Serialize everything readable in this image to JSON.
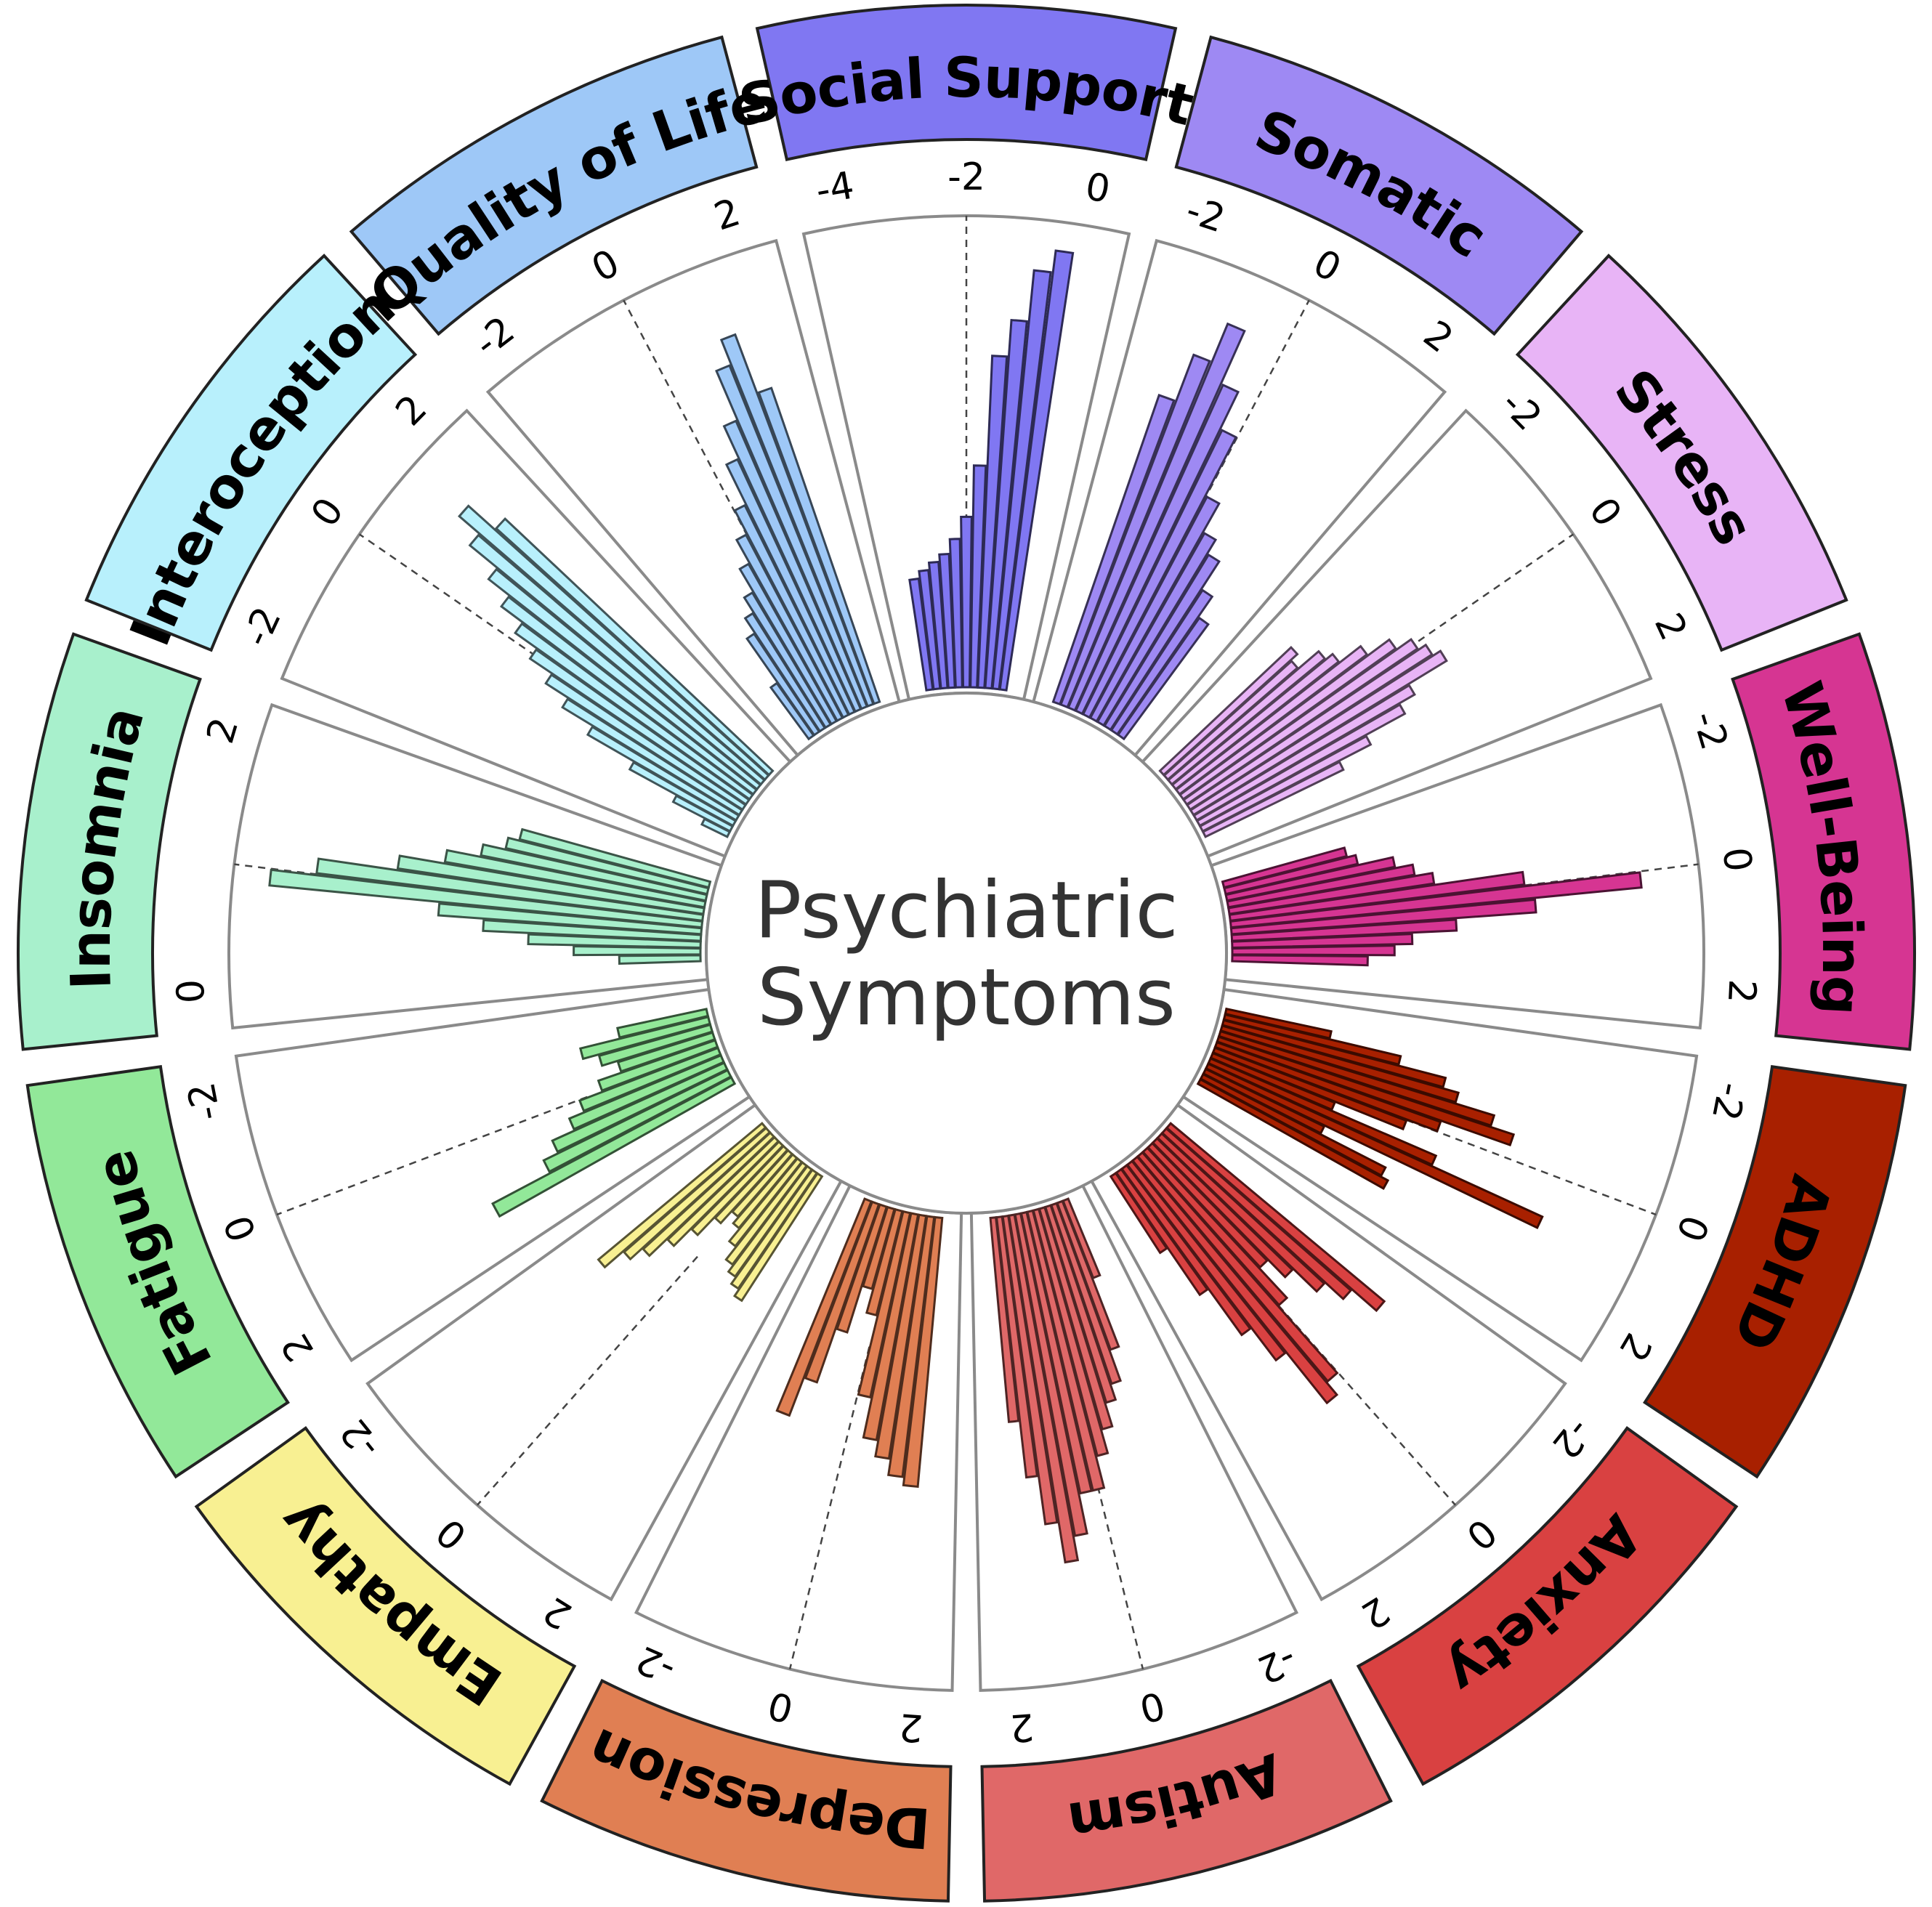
{
  "chart_data": {
    "type": "circular-bar",
    "title": "Psychiatric Symptoms",
    "title_lines": [
      "Psychiatric",
      "Symptoms"
    ],
    "tick_values": [
      -2,
      0,
      2
    ],
    "categories": [
      {
        "name": "Social Support",
        "color": "#8077f2",
        "ticks": [
          -4,
          -2,
          0
        ],
        "range": [
          -5,
          1.2
        ],
        "values": [
          -3.5,
          -3.4,
          -3.3,
          -3.2,
          -3.0,
          -2.7,
          -2.0,
          -0.5,
          0.0,
          0.7,
          1.0
        ]
      },
      {
        "name": "Somatic",
        "color": "#9e89f3",
        "ticks": [
          -2,
          0,
          2
        ],
        "range": [
          -2.3,
          3.2
        ],
        "values": [
          1.6,
          2.2,
          2.7,
          2.0,
          1.5,
          0.7,
          0.3,
          0.1,
          -0.3,
          -0.6
        ]
      },
      {
        "name": "Stress",
        "color": "#e8b4f6",
        "ticks": [
          -2,
          0,
          2
        ],
        "range": [
          -2.3,
          2.8
        ],
        "values": [
          -0.3,
          -0.4,
          -0.1,
          0.0,
          0.3,
          0.6,
          0.8,
          0.9,
          1.0,
          0.5,
          0.3,
          -0.2,
          -0.6
        ]
      },
      {
        "name": "Well-Being",
        "color": "#d63592",
        "ticks": [
          -2,
          0,
          2
        ],
        "range": [
          -2.3,
          2.8
        ],
        "values": [
          -0.9,
          -0.8,
          -0.4,
          -0.2,
          0.0,
          1.0,
          2.3,
          1.1,
          0.2,
          -0.3,
          -0.5,
          -0.8
        ]
      },
      {
        "name": "ADHD",
        "color": "#a82000",
        "ticks": [
          -2,
          0,
          2
        ],
        "range": [
          -2.8,
          2.8
        ],
        "values": [
          -1.5,
          -0.6,
          0.0,
          0.2,
          0.7,
          1.0,
          0.1,
          -0.3,
          -1.2,
          0.2,
          1.7,
          -1.2,
          -0.3,
          -0.2
        ]
      },
      {
        "name": "Anxiety",
        "color": "#d94141",
        "ticks": [
          -2,
          0,
          2
        ],
        "range": [
          -2.8,
          2.8
        ],
        "values": [
          0.6,
          0.2,
          -0.1,
          -0.5,
          -0.8,
          -0.3,
          0.8,
          1.0,
          0.2,
          -0.3,
          -1.0,
          -1.7
        ]
      },
      {
        "name": "Autism",
        "color": "#e06868",
        "ticks": [
          -2,
          0,
          2
        ],
        "range": [
          -2.8,
          2.8
        ],
        "values": [
          -1.8,
          -0.9,
          -0.5,
          -0.3,
          0.0,
          0.3,
          0.7,
          0.7,
          1.2,
          1.5,
          1.0,
          0.4,
          -0.3
        ]
      },
      {
        "name": "Depression",
        "color": "#e07f53",
        "ticks": [
          2,
          0,
          -2
        ],
        "range": [
          -2.8,
          2.8
        ],
        "values": [
          0.5,
          0.4,
          0.2,
          0.0,
          -0.5,
          -1.5,
          -1.8,
          -1.2,
          -0.5,
          0.0
        ]
      },
      {
        "name": "Empathy",
        "color": "#f8f092",
        "ticks": [
          2,
          0,
          -2
        ],
        "range": [
          -2.8,
          2.8
        ],
        "values": [
          -1.0,
          -1.1,
          -1.2,
          -1.3,
          -1.5,
          -1.7,
          -1.8,
          -1.6,
          -1.3,
          -1.0,
          -0.7,
          -0.5,
          -0.2
        ]
      },
      {
        "name": "Fatigue",
        "color": "#92e899",
        "ticks": [
          2,
          0,
          -2
        ],
        "range": [
          -2.8,
          2.8
        ],
        "values": [
          0.5,
          -0.3,
          -0.5,
          -0.8,
          -1.0,
          -1.3,
          -1.6,
          -1.4,
          -1.2,
          -1.7
        ]
      },
      {
        "name": "Insomnia",
        "color": "#a8f0cc",
        "ticks": [
          0,
          2
        ],
        "range": [
          -1.4,
          2.6
        ],
        "values": [
          -0.7,
          -0.3,
          0.1,
          0.5,
          0.9,
          2.4,
          2.0,
          1.3,
          0.9,
          0.6,
          0.4,
          0.3
        ]
      },
      {
        "name": "Interoception",
        "color": "#b8f0fc",
        "ticks": [
          -2,
          0,
          2
        ],
        "range": [
          -2.3,
          2.8
        ],
        "values": [
          -2.0,
          -1.6,
          -1.0,
          -0.4,
          0.0,
          0.3,
          0.6,
          0.9,
          1.2,
          1.5,
          1.9,
          2.2,
          1.8
        ]
      },
      {
        "name": "Quality of Life",
        "color": "#9ec8f7",
        "ticks": [
          -2,
          0,
          2
        ],
        "range": [
          -2.3,
          2.8
        ],
        "values": [
          -1.6,
          -1.0,
          -0.8,
          -0.6,
          -0.3,
          0.0,
          0.3,
          0.8,
          1.2,
          1.8,
          2.1,
          1.4
        ]
      }
    ]
  }
}
